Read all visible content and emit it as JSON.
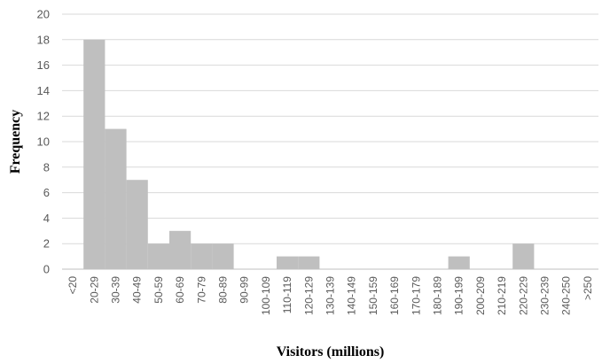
{
  "chart_data": {
    "type": "bar",
    "title": "",
    "xlabel": "Visitors (millions)",
    "ylabel": "Frequency",
    "ylim": [
      0,
      20
    ],
    "yticks": [
      0,
      2,
      4,
      6,
      8,
      10,
      12,
      14,
      16,
      18,
      20
    ],
    "grid": true,
    "legend": "none",
    "bar_color": "#bfbfbf",
    "categories": [
      "<20",
      "20-29",
      "30-39",
      "40-49",
      "50-59",
      "60-69",
      "70-79",
      "80-89",
      "90-99",
      "100-109",
      "110-119",
      "120-129",
      "130-139",
      "140-149",
      "150-159",
      "160-169",
      "170-179",
      "180-189",
      "190-199",
      "200-209",
      "210-219",
      "220-229",
      "230-239",
      "240-250",
      ">250"
    ],
    "values": [
      0,
      18,
      11,
      7,
      2,
      3,
      2,
      2,
      0,
      0,
      1,
      1,
      0,
      0,
      0,
      0,
      0,
      0,
      1,
      0,
      0,
      2,
      0,
      0,
      0
    ]
  }
}
